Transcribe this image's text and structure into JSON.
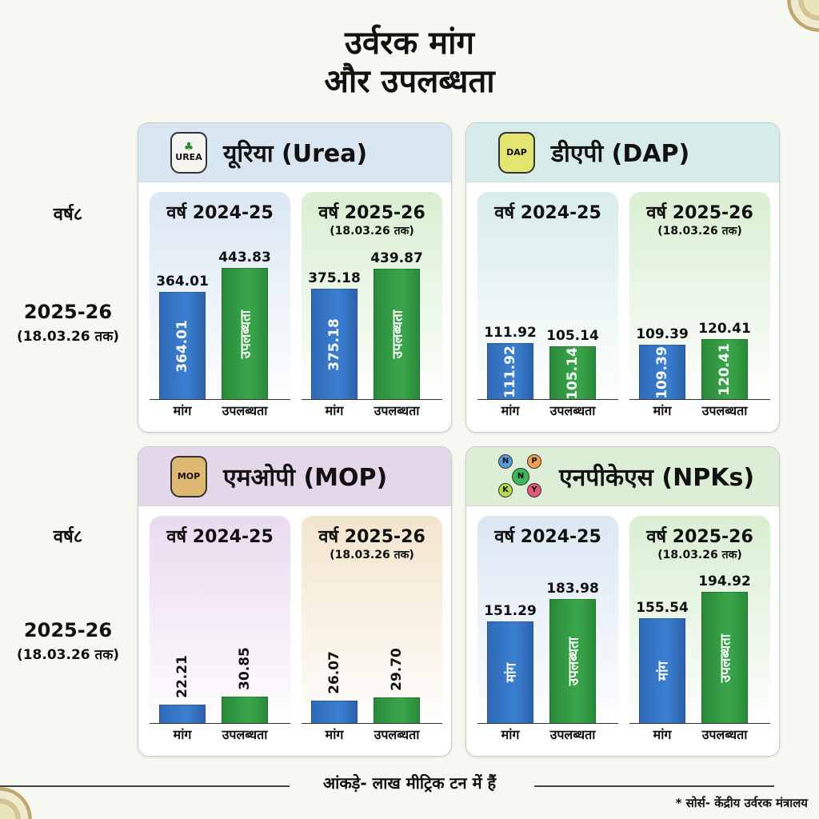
{
  "title": {
    "line1": "उर्वरक मांग",
    "line2": "और उपलब्धता"
  },
  "side_labels": {
    "top": {
      "year_word": "वर्ष८",
      "fy": "2025-26",
      "date": "(18.03.26 तक)"
    },
    "bottom": {
      "year_word": "वर्ष८",
      "fy": "2025-26",
      "date": "(18.03.26 तक)"
    }
  },
  "panels": [
    {
      "id": "urea",
      "title": "यूरिया (Urea)",
      "icon": "urea-bag-icon",
      "icon_text": "UREA",
      "header_color": "#d8e6f2",
      "years": [
        {
          "title": "वर्ष 2024-25",
          "date": "",
          "bg": "#dbe7f3",
          "demand": {
            "value": "364.01",
            "inner": "364.01"
          },
          "availability": {
            "value": "443.83",
            "inner": "उपलब्धता"
          }
        },
        {
          "title": "वर्ष 2025-26",
          "date": "(18.03.26 तक)",
          "bg": "#d9efd2",
          "demand": {
            "value": "375.18",
            "inner": "375.18"
          },
          "availability": {
            "value": "439.87",
            "inner": "उपलब्धता"
          }
        }
      ]
    },
    {
      "id": "dap",
      "title": "डीएपी (DAP)",
      "icon": "dap-bag-icon",
      "icon_text": "DAP",
      "header_color": "#d7ece9",
      "years": [
        {
          "title": "वर्ष 2024-25",
          "date": "",
          "bg": "#d9ecec",
          "demand": {
            "value": "111.92",
            "inner": "111.92"
          },
          "availability": {
            "value": "105.14",
            "inner": "105.14"
          }
        },
        {
          "title": "वर्ष 2025-26",
          "date": "(18.03.26 तक)",
          "bg": "#d9efd2",
          "demand": {
            "value": "109.39",
            "inner": "109.39"
          },
          "availability": {
            "value": "120.41",
            "inner": "120.41"
          }
        }
      ]
    },
    {
      "id": "mop",
      "title": "एमओपी (MOP)",
      "icon": "mop-bag-icon",
      "icon_text": "MOP",
      "header_color": "#e5d7ea",
      "years": [
        {
          "title": "वर्ष 2024-25",
          "date": "",
          "bg": "#eadbef",
          "demand": {
            "value": "22.21",
            "inner": ""
          },
          "availability": {
            "value": "30.85",
            "inner": ""
          }
        },
        {
          "title": "वर्ष 2025-26",
          "date": "(18.03.26 तक)",
          "bg": "#f3e5cc",
          "demand": {
            "value": "26.07",
            "inner": ""
          },
          "availability": {
            "value": "29.70",
            "inner": ""
          }
        }
      ]
    },
    {
      "id": "npk",
      "title": "एनपीकेएस (NPKs)",
      "icon": "npk-cycle-icon",
      "icon_text": "NPK",
      "header_color": "#dcefd6",
      "years": [
        {
          "title": "वर्ष 2024-25",
          "date": "",
          "bg": "#dbe7f3",
          "demand": {
            "value": "151.29",
            "inner": "मांग"
          },
          "availability": {
            "value": "183.98",
            "inner": "उपलब्धता"
          }
        },
        {
          "title": "वर्ष 2025-26",
          "date": "(18.03.26 तक)",
          "bg": "#d9efd2",
          "demand": {
            "value": "155.54",
            "inner": "मांग"
          },
          "availability": {
            "value": "194.92",
            "inner": "उपलब्धता"
          }
        }
      ]
    }
  ],
  "axis_labels": {
    "demand": "मांग",
    "availability": "उपलब्धता"
  },
  "footer": {
    "note": "आंकड़े- लाख मीट्रिक टन में हैं",
    "source": "* सोर्स- केंद्रीय उर्वरक मंत्रालय"
  },
  "colors": {
    "demand": "#3574c4",
    "availability": "#36a046"
  },
  "chart_data": [
    {
      "type": "bar",
      "title": "यूरिया (Urea)",
      "categories": [
        "मांग",
        "उपलब्धता"
      ],
      "series": [
        {
          "name": "वर्ष 2024-25",
          "values": [
            364.01,
            443.83
          ]
        },
        {
          "name": "वर्ष 2025-26 (18.03.26 तक)",
          "values": [
            375.18,
            439.87
          ]
        }
      ],
      "ylabel": "लाख मीट्रिक टन"
    },
    {
      "type": "bar",
      "title": "डीएपी (DAP)",
      "categories": [
        "मांग",
        "उपलब्धता"
      ],
      "series": [
        {
          "name": "वर्ष 2024-25",
          "values": [
            111.92,
            105.14
          ]
        },
        {
          "name": "वर्ष 2025-26 (18.03.26 तक)",
          "values": [
            109.39,
            120.41
          ]
        }
      ],
      "ylabel": "लाख मीट्रिक टन"
    },
    {
      "type": "bar",
      "title": "एमओपी (MOP)",
      "categories": [
        "मांग",
        "उपलब्धता"
      ],
      "series": [
        {
          "name": "वर्ष 2024-25",
          "values": [
            22.21,
            30.85
          ]
        },
        {
          "name": "वर्ष 2025-26 (18.03.26 तक)",
          "values": [
            26.07,
            29.7
          ]
        }
      ],
      "ylabel": "लाख मीट्रिक टन"
    },
    {
      "type": "bar",
      "title": "एनपीकेएस (NPKs)",
      "categories": [
        "मांग",
        "उपलब्धता"
      ],
      "series": [
        {
          "name": "वर्ष 2024-25",
          "values": [
            151.29,
            183.98
          ]
        },
        {
          "name": "वर्ष 2025-26 (18.03.26 तक)",
          "values": [
            155.54,
            194.92
          ]
        }
      ],
      "ylabel": "लाख मीट्रिक टन"
    }
  ]
}
